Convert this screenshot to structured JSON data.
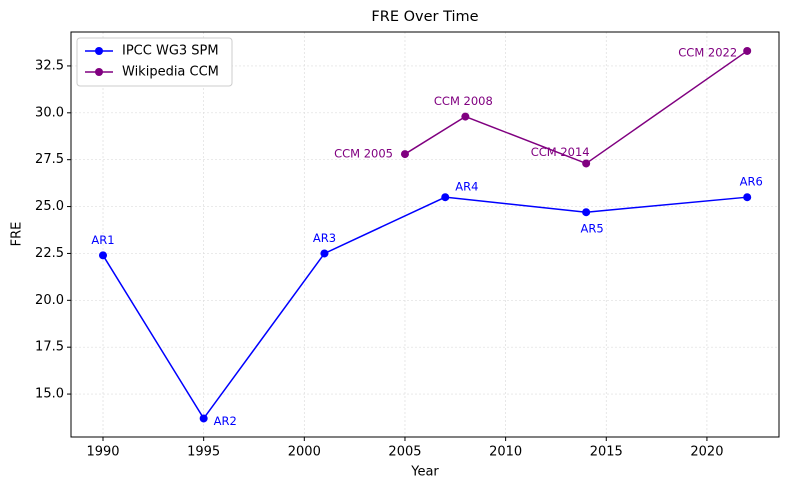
{
  "chart_data": {
    "type": "line",
    "title": "FRE Over Time",
    "x_label": "Year",
    "y_label": "FRE",
    "xlim": [
      1988.41,
      2023.58
    ],
    "ylim": [
      12.71,
      34.31
    ],
    "xticks": [
      1990,
      1995,
      2000,
      2005,
      2010,
      2015,
      2020
    ],
    "yticks": [
      {
        "value": 15,
        "label": "15.0"
      },
      {
        "value": 17.5,
        "label": "17.5"
      },
      {
        "value": 20,
        "label": "20.0"
      },
      {
        "value": 22.5,
        "label": "22.5"
      },
      {
        "value": 25,
        "label": "25.0"
      },
      {
        "value": 27.5,
        "label": "27.5"
      },
      {
        "value": 30,
        "label": "30.0"
      },
      {
        "value": 32.5,
        "label": "32.5"
      }
    ],
    "grid": true,
    "legend": "upper left",
    "series": [
      {
        "name": "IPCC WG3 SPM",
        "color": "#0000ff",
        "x": [
          1990,
          1995,
          2001,
          2007,
          2014,
          2022
        ],
        "values": [
          22.4,
          13.7,
          22.5,
          25.5,
          24.7,
          25.5
        ],
        "point_labels": [
          "AR1",
          "AR2",
          "AR3",
          "AR4",
          "AR5",
          "AR6"
        ]
      },
      {
        "name": "Wikipedia CCM",
        "color": "#800080",
        "x": [
          2005,
          2008,
          2014,
          2022
        ],
        "values": [
          27.8,
          29.8,
          27.3,
          33.3
        ],
        "point_labels": [
          "CCM 2005",
          "CCM 2008",
          "CCM 2014",
          "CCM 2022"
        ]
      }
    ]
  }
}
